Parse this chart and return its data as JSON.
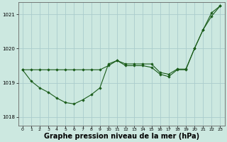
{
  "background_color": "#cce8e0",
  "grid_color": "#aacccc",
  "line_color": "#1a5c1a",
  "marker_color": "#1a5c1a",
  "xlabel": "Graphe pression niveau de la mer (hPa)",
  "xlabel_fontsize": 7.0,
  "xlabel_bold": true,
  "ylim": [
    1017.75,
    1021.35
  ],
  "xlim": [
    -0.5,
    23.5
  ],
  "yticks": [
    1018,
    1019,
    1020,
    1021
  ],
  "xticks": [
    0,
    1,
    2,
    3,
    4,
    5,
    6,
    7,
    8,
    9,
    10,
    11,
    12,
    13,
    14,
    15,
    16,
    17,
    18,
    19,
    20,
    21,
    22,
    23
  ],
  "series1_x": [
    0,
    1,
    2,
    3,
    4,
    5,
    6,
    7,
    8,
    9,
    10,
    11,
    12,
    13,
    14,
    15,
    16,
    17,
    18,
    19,
    20,
    21,
    22,
    23
  ],
  "series1_y": [
    1019.38,
    1019.38,
    1019.38,
    1019.38,
    1019.38,
    1019.38,
    1019.38,
    1019.38,
    1019.38,
    1019.38,
    1019.5,
    1019.65,
    1019.55,
    1019.55,
    1019.55,
    1019.55,
    1019.3,
    1019.25,
    1019.4,
    1019.4,
    1020.0,
    1020.55,
    1021.05,
    1021.25
  ],
  "series2_x": [
    0,
    1,
    2,
    3,
    4,
    5,
    6,
    7,
    8,
    9,
    10,
    11,
    12,
    13,
    14,
    15,
    16,
    17,
    18,
    19,
    20,
    21,
    22,
    23
  ],
  "series2_y": [
    1019.38,
    1019.05,
    1018.85,
    1018.72,
    1018.55,
    1018.42,
    1018.38,
    1018.5,
    1018.65,
    1018.85,
    1019.55,
    1019.65,
    1019.5,
    1019.5,
    1019.5,
    1019.45,
    1019.25,
    1019.18,
    1019.38,
    1019.38,
    1020.0,
    1020.55,
    1020.95,
    1021.25
  ]
}
